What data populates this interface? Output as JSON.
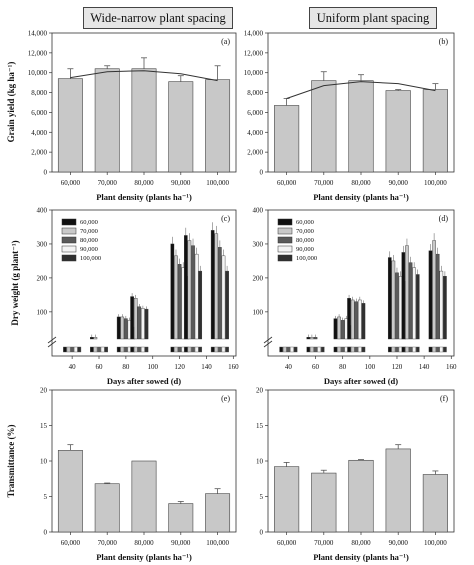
{
  "headers": {
    "left": "Wide-narrow plant spacing",
    "right": "Uniform plant spacing"
  },
  "colors": {
    "bar": "#c8c8c8",
    "outline": "#444444",
    "trend": "#333333",
    "error": "#555555",
    "break_box": "#555555",
    "series": [
      "#111111",
      "#c9c9c9",
      "#5a5a5a",
      "#f4f4f4",
      "#303030"
    ]
  },
  "chart_data": [
    {
      "panel": "(a)",
      "type": "bar",
      "ylabel": "Grain yield (kg ha⁻¹)",
      "xlabel": "Plant density (plants ha⁻¹)",
      "ylim": [
        0,
        14000
      ],
      "yticks": [
        0,
        2000,
        4000,
        6000,
        8000,
        10000,
        12000,
        14000
      ],
      "yticklabels": [
        "0",
        "2,000",
        "4,000",
        "6,000",
        "8,000",
        "10,000",
        "12,000",
        "14,000"
      ],
      "categories": [
        "60,000",
        "70,000",
        "80,000",
        "90,000",
        "100,000"
      ],
      "values": [
        9400,
        10400,
        10400,
        9100,
        9300
      ],
      "errors": [
        1000,
        300,
        1100,
        600,
        1400
      ],
      "trend": [
        9500,
        10100,
        10200,
        9900,
        9200
      ]
    },
    {
      "panel": "(b)",
      "type": "bar",
      "ylabel": "",
      "xlabel": "Plant density (plants ha⁻¹)",
      "ylim": [
        0,
        14000
      ],
      "yticks": [
        0,
        2000,
        4000,
        6000,
        8000,
        10000,
        12000,
        14000
      ],
      "yticklabels": [
        "0",
        "2,000",
        "4,000",
        "6,000",
        "8,000",
        "10,000",
        "12,000",
        "14,000"
      ],
      "categories": [
        "60,000",
        "70,000",
        "80,000",
        "90,000",
        "100,000"
      ],
      "values": [
        6700,
        9200,
        9200,
        8200,
        8300
      ],
      "errors": [
        700,
        900,
        600,
        100,
        600
      ],
      "trend": [
        7400,
        8700,
        9100,
        8900,
        8200
      ]
    },
    {
      "panel": "(c)",
      "type": "bar",
      "ylabel": "Dry weight (g plant⁻¹)",
      "xlabel": "Days after sowed (d)",
      "ylim": [
        0,
        400
      ],
      "yticks": [
        100,
        200,
        300,
        400
      ],
      "yticklabels": [
        "100",
        "200",
        "300",
        "400"
      ],
      "xlim": [
        25,
        162
      ],
      "xticks": [
        40,
        60,
        80,
        100,
        120,
        140,
        160
      ],
      "xticklabels": [
        "40",
        "60",
        "80",
        "100",
        "120",
        "140",
        "160"
      ],
      "groups_x": [
        37,
        62,
        82,
        102,
        122,
        142
      ],
      "series": [
        {
          "name": "60,000",
          "values": [
            5,
            25,
            85,
            145,
            300,
            325,
            340
          ]
        },
        {
          "name": "70,000",
          "values": [
            5,
            25,
            85,
            140,
            265,
            310,
            330
          ]
        },
        {
          "name": "80,000",
          "values": [
            5,
            20,
            80,
            115,
            240,
            295,
            290
          ]
        },
        {
          "name": "90,000",
          "values": [
            5,
            20,
            75,
            110,
            230,
            270,
            265
          ]
        },
        {
          "name": "100,000",
          "values": [
            5,
            15,
            55,
            108,
            205,
            220,
            220
          ]
        }
      ],
      "x": [
        40,
        60,
        80,
        90,
        120,
        130,
        150
      ]
    },
    {
      "panel": "(d)",
      "type": "bar",
      "ylabel": "",
      "xlabel": "Days after sowed (d)",
      "ylim": [
        0,
        400
      ],
      "yticks": [
        100,
        200,
        300,
        400
      ],
      "yticklabels": [
        "100",
        "200",
        "300",
        "400"
      ],
      "xlim": [
        25,
        162
      ],
      "xticks": [
        40,
        60,
        80,
        100,
        120,
        140,
        160
      ],
      "xticklabels": [
        "40",
        "60",
        "80",
        "100",
        "120",
        "140",
        "160"
      ],
      "series": [
        {
          "name": "60,000",
          "values": [
            5,
            25,
            80,
            140,
            260,
            275,
            280
          ]
        },
        {
          "name": "70,000",
          "values": [
            5,
            25,
            85,
            135,
            250,
            295,
            310
          ]
        },
        {
          "name": "80,000",
          "values": [
            5,
            25,
            75,
            130,
            215,
            245,
            270
          ]
        },
        {
          "name": "90,000",
          "values": [
            5,
            20,
            80,
            135,
            205,
            230,
            220
          ]
        },
        {
          "name": "100,000",
          "values": [
            5,
            15,
            60,
            125,
            190,
            210,
            205
          ]
        }
      ],
      "x": [
        40,
        60,
        80,
        90,
        120,
        130,
        150
      ]
    },
    {
      "panel": "(e)",
      "type": "bar",
      "ylabel": "Transmittance (%)",
      "xlabel": "Plant density (plants ha⁻¹)",
      "ylim": [
        0,
        20
      ],
      "yticks": [
        0,
        5,
        10,
        15,
        20
      ],
      "yticklabels": [
        "0",
        "5",
        "10",
        "15",
        "20"
      ],
      "categories": [
        "60,000",
        "70,000",
        "80,000",
        "90,000",
        "100,000"
      ],
      "values": [
        11.5,
        6.8,
        10.0,
        4.0,
        5.4
      ],
      "errors": [
        0.8,
        0.1,
        0.0,
        0.3,
        0.7
      ]
    },
    {
      "panel": "(f)",
      "type": "bar",
      "ylabel": "",
      "xlabel": "Plant density (plants ha⁻¹)",
      "ylim": [
        0,
        20
      ],
      "yticks": [
        0,
        5,
        10,
        15,
        20
      ],
      "yticklabels": [
        "0",
        "5",
        "10",
        "15",
        "20"
      ],
      "categories": [
        "60,000",
        "70,000",
        "80,000",
        "90,000",
        "100,000"
      ],
      "values": [
        9.2,
        8.3,
        10.1,
        11.7,
        8.1
      ],
      "errors": [
        0.6,
        0.4,
        0.1,
        0.6,
        0.5
      ]
    }
  ]
}
